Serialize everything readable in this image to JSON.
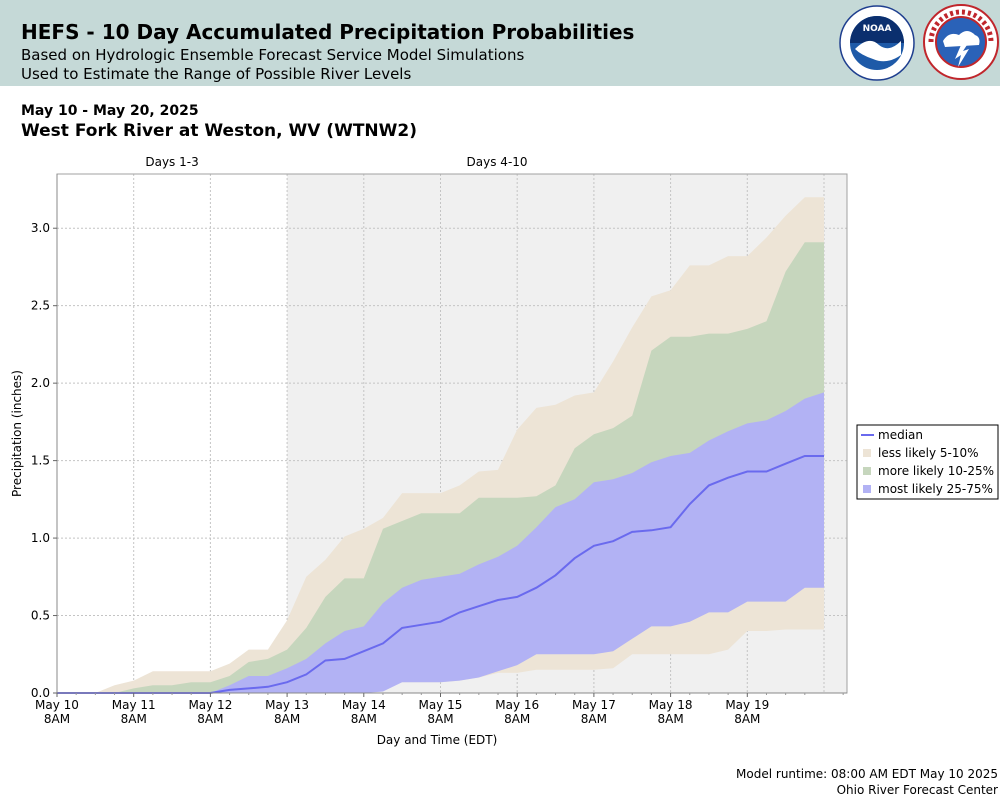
{
  "header": {
    "title": "HEFS - 10 Day Accumulated Precipitation Probabilities",
    "subtitle1": "Based on Hydrologic Ensemble Forecast Service Model Simulations",
    "subtitle2": "Used to Estimate the Range of Possible River Levels",
    "logos": [
      "noaa-logo",
      "nws-logo"
    ],
    "background_color": "#c5d9d7"
  },
  "date_range": "May 10 - May 20, 2025",
  "location": "West Fork River at Weston, WV (WTNW2)",
  "footer": {
    "runtime": "Model runtime: 08:00 AM EDT May 10 2025",
    "center": "Ohio River Forecast Center"
  },
  "chart_data": {
    "type": "area",
    "ylabel": "Precipitation (inches)",
    "xlabel": "Day and Time (EDT)",
    "xlim": [
      0,
      10.3
    ],
    "ylim": [
      0,
      3.35
    ],
    "y_ticks": [
      0.0,
      0.5,
      1.0,
      1.5,
      2.0,
      2.5,
      3.0
    ],
    "y_tick_labels": [
      "0.0",
      "0.5",
      "1.0",
      "1.5",
      "2.0",
      "2.5",
      "3.0"
    ],
    "x_ticks": [
      0,
      1,
      2,
      3,
      4,
      5,
      6,
      7,
      8,
      9
    ],
    "x_tick_labels": [
      [
        "May 10",
        "8AM"
      ],
      [
        "May 11",
        "8AM"
      ],
      [
        "May 12",
        "8AM"
      ],
      [
        "May 13",
        "8AM"
      ],
      [
        "May 14",
        "8AM"
      ],
      [
        "May 15",
        "8AM"
      ],
      [
        "May 16",
        "8AM"
      ],
      [
        "May 17",
        "8AM"
      ],
      [
        "May 18",
        "8AM"
      ],
      [
        "May 19",
        "8AM"
      ]
    ],
    "periods": [
      {
        "label": "Days 1-3",
        "start": 0,
        "end": 3,
        "shaded": false
      },
      {
        "label": "Days 4-10",
        "start": 3,
        "end": 10.3,
        "shaded": true
      }
    ],
    "grid": true,
    "legend_position": "right",
    "x": [
      0,
      0.25,
      0.5,
      0.75,
      1,
      1.25,
      1.5,
      1.75,
      2,
      2.25,
      2.5,
      2.75,
      3,
      3.25,
      3.5,
      3.75,
      4,
      4.25,
      4.5,
      4.75,
      5,
      5.25,
      5.5,
      5.75,
      6,
      6.25,
      6.5,
      6.75,
      7,
      7.25,
      7.5,
      7.75,
      8,
      8.25,
      8.5,
      8.75,
      9,
      9.25,
      9.5,
      9.75,
      10
    ],
    "series": [
      {
        "name": "less likely 5-10%",
        "kind": "band",
        "color": "#ede4d6",
        "lower": [
          0,
          0,
          0,
          0,
          0,
          0,
          0,
          0,
          0,
          0,
          0,
          0,
          0,
          0,
          0,
          0,
          0,
          0.03,
          0.07,
          0.07,
          0.07,
          0.08,
          0.1,
          0.13,
          0.13,
          0.15,
          0.15,
          0.15,
          0.15,
          0.16,
          0.25,
          0.25,
          0.25,
          0.25,
          0.25,
          0.28,
          0.4,
          0.4,
          0.41,
          0.41,
          0.41
        ],
        "upper": [
          0,
          0,
          0,
          0.05,
          0.08,
          0.14,
          0.14,
          0.14,
          0.14,
          0.19,
          0.28,
          0.28,
          0.47,
          0.75,
          0.86,
          1.01,
          1.06,
          1.13,
          1.29,
          1.29,
          1.29,
          1.34,
          1.43,
          1.44,
          1.7,
          1.84,
          1.86,
          1.92,
          1.94,
          2.14,
          2.36,
          2.56,
          2.6,
          2.76,
          2.76,
          2.82,
          2.82,
          2.94,
          3.08,
          3.2,
          3.2
        ]
      },
      {
        "name": "more likely 10-25%",
        "kind": "band",
        "color": "#c6d6bd",
        "lower": [
          0,
          0,
          0,
          0,
          0,
          0,
          0,
          0,
          0,
          0,
          0,
          0,
          0,
          0.01,
          0.06,
          0.07,
          0.08,
          0.14,
          0.25,
          0.25,
          0.26,
          0.27,
          0.29,
          0.31,
          0.36,
          0.43,
          0.49,
          0.52,
          0.6,
          0.6,
          0.65,
          0.73,
          0.73,
          0.73,
          0.8,
          0.8,
          0.84,
          0.95,
          0.95,
          1.11,
          1.13
        ],
        "upper": [
          0,
          0,
          0,
          0,
          0.03,
          0.05,
          0.05,
          0.07,
          0.07,
          0.11,
          0.2,
          0.22,
          0.28,
          0.42,
          0.62,
          0.74,
          0.74,
          1.06,
          1.11,
          1.16,
          1.16,
          1.16,
          1.26,
          1.26,
          1.26,
          1.27,
          1.34,
          1.58,
          1.67,
          1.71,
          1.79,
          2.21,
          2.3,
          2.3,
          2.32,
          2.32,
          2.35,
          2.4,
          2.72,
          2.91,
          2.91
        ]
      },
      {
        "name": "most likely 25-75%",
        "kind": "band",
        "color": "#b2b2f4",
        "lower": [
          0,
          0,
          0,
          0,
          0,
          0,
          0,
          0,
          0,
          0,
          0,
          0,
          0,
          0,
          0,
          0,
          0,
          0.01,
          0.07,
          0.07,
          0.07,
          0.08,
          0.1,
          0.14,
          0.18,
          0.25,
          0.25,
          0.25,
          0.25,
          0.27,
          0.35,
          0.43,
          0.43,
          0.46,
          0.52,
          0.52,
          0.59,
          0.59,
          0.59,
          0.68,
          0.68
        ],
        "upper": [
          0,
          0,
          0,
          0,
          0,
          0,
          0,
          0,
          0,
          0.05,
          0.11,
          0.11,
          0.16,
          0.22,
          0.32,
          0.4,
          0.43,
          0.58,
          0.68,
          0.73,
          0.75,
          0.77,
          0.83,
          0.88,
          0.95,
          1.07,
          1.2,
          1.25,
          1.36,
          1.38,
          1.42,
          1.49,
          1.53,
          1.55,
          1.63,
          1.69,
          1.74,
          1.76,
          1.82,
          1.9,
          1.94
        ]
      },
      {
        "name": "median",
        "kind": "line",
        "color": "#6a6aee",
        "values": [
          0,
          0,
          0,
          0,
          0,
          0,
          0,
          0,
          0,
          0.02,
          0.03,
          0.04,
          0.07,
          0.12,
          0.21,
          0.22,
          0.27,
          0.32,
          0.42,
          0.44,
          0.46,
          0.52,
          0.56,
          0.6,
          0.62,
          0.68,
          0.76,
          0.87,
          0.95,
          0.98,
          1.04,
          1.05,
          1.07,
          1.22,
          1.34,
          1.39,
          1.43,
          1.43,
          1.48,
          1.53,
          1.53
        ]
      }
    ],
    "legend_order": [
      "median",
      "less likely 5-10%",
      "more likely 10-25%",
      "most likely 25-75%"
    ]
  }
}
